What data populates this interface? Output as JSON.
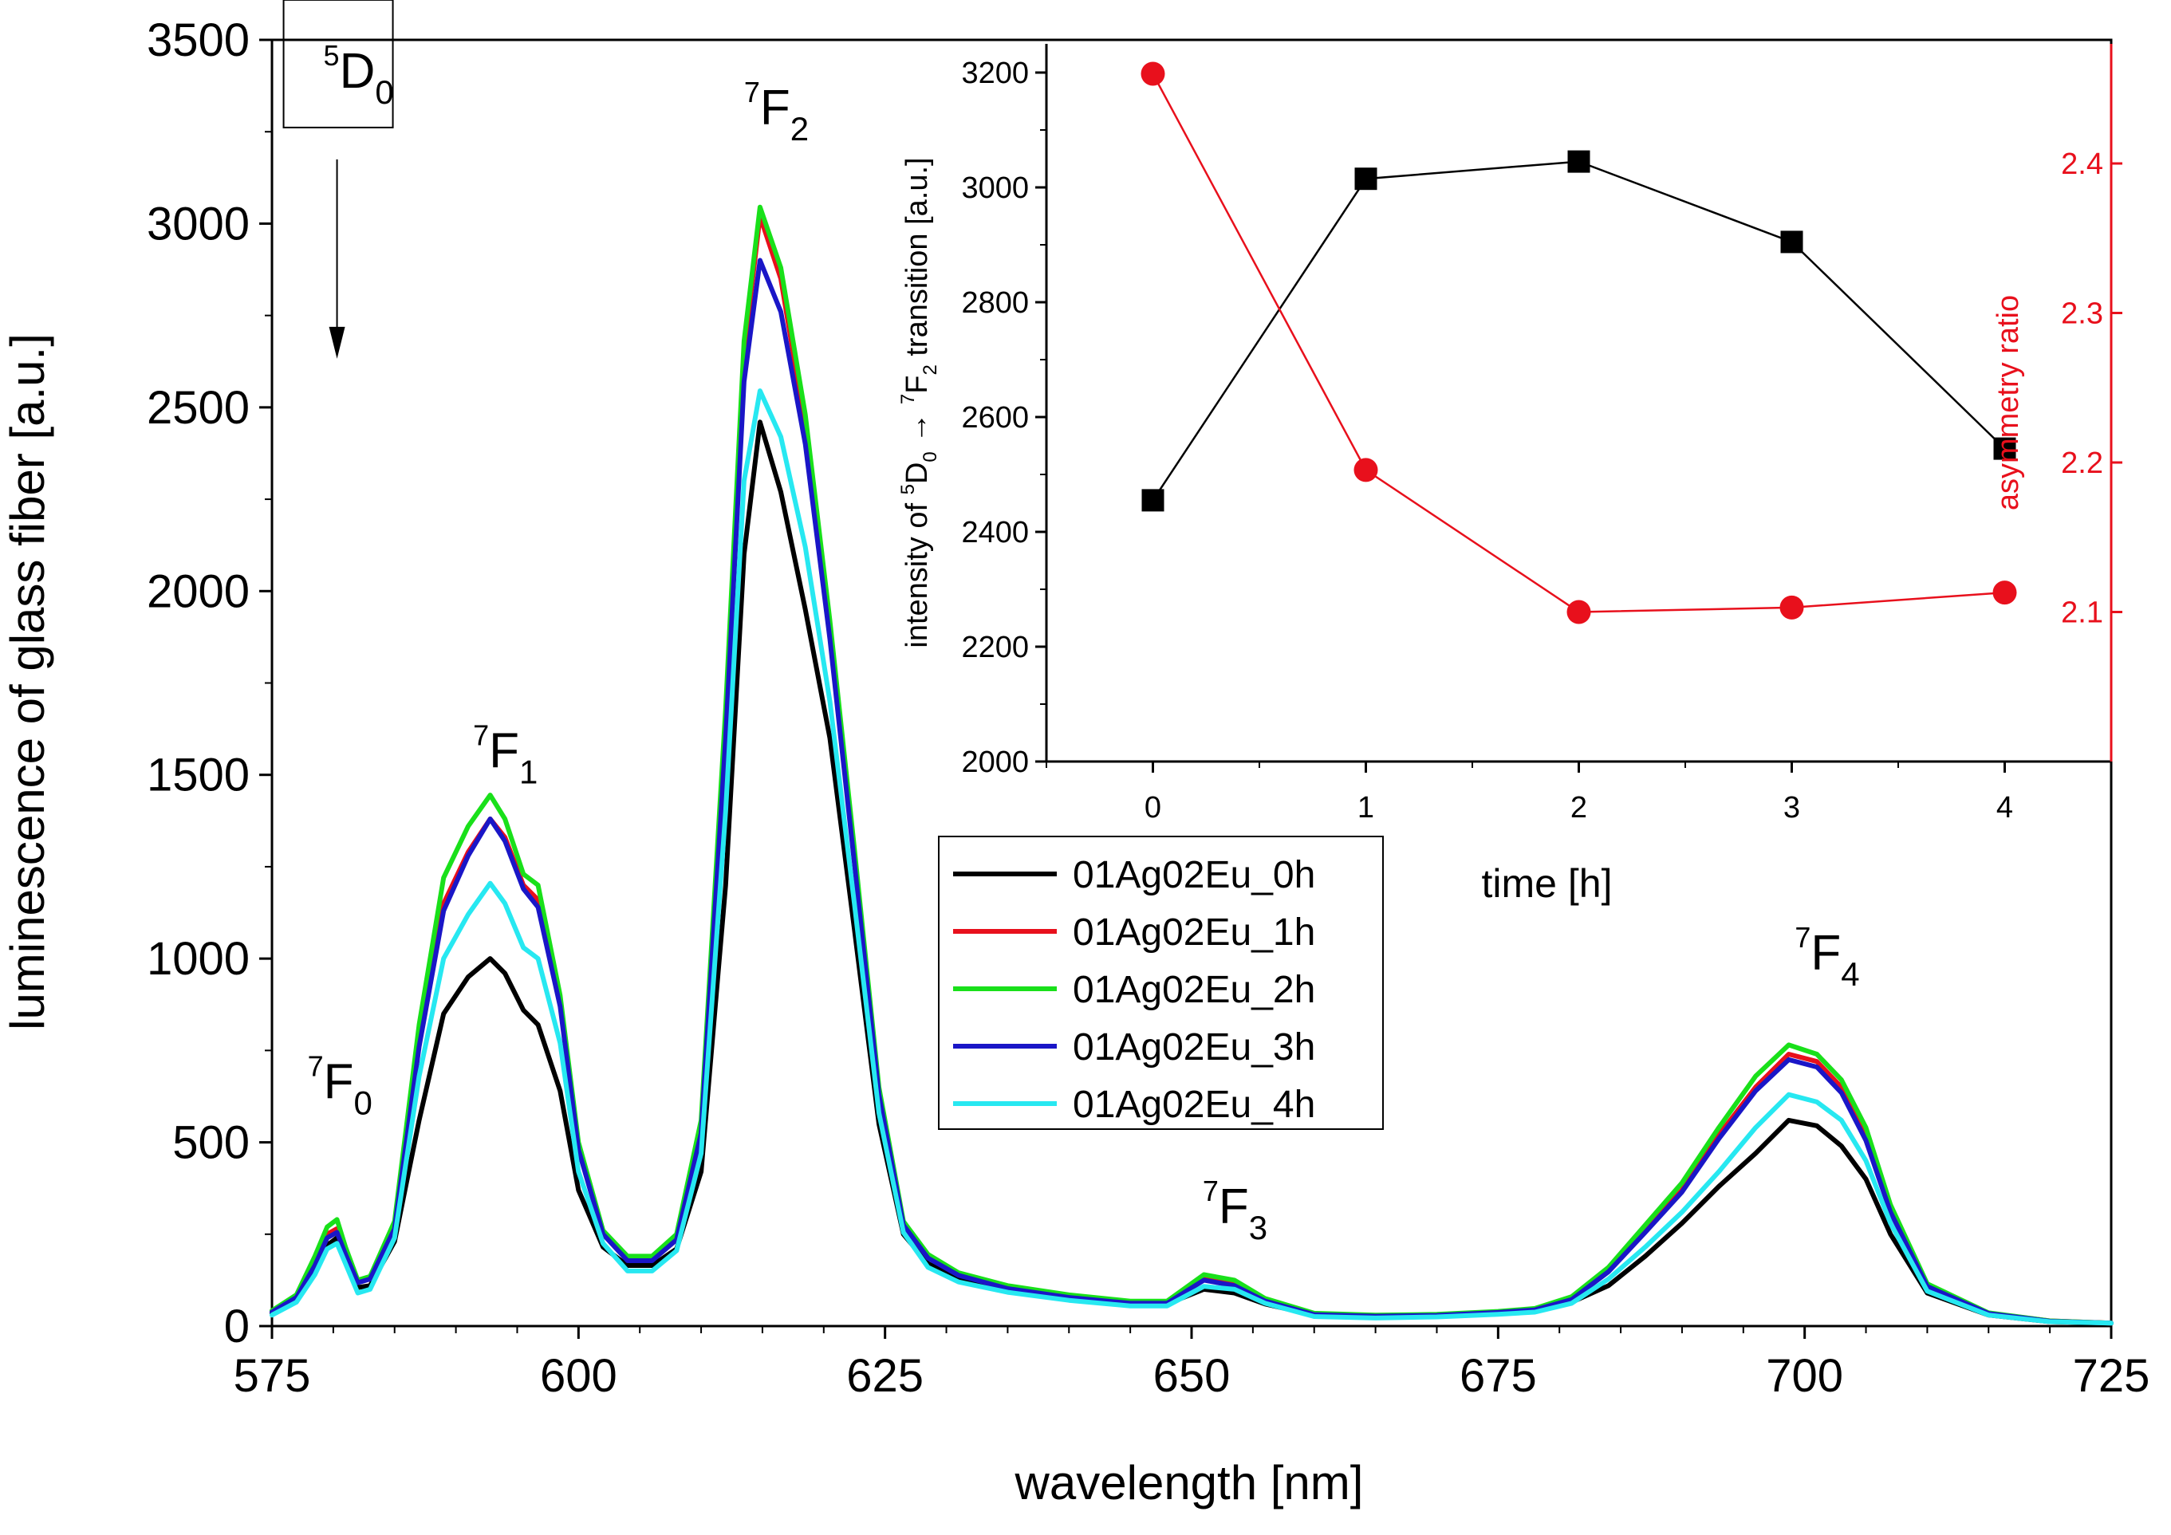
{
  "chart_data": [
    {
      "type": "line",
      "xlabel": "wavelength [nm]",
      "ylabel": "luminescence of glass fiber [a.u.]",
      "xlim": [
        575,
        725
      ],
      "ylim": [
        0,
        3500
      ],
      "xticks": [
        575,
        600,
        625,
        650,
        675,
        700,
        725
      ],
      "yticks": [
        0,
        500,
        1000,
        1500,
        2000,
        2500,
        3000,
        3500
      ],
      "xtick_labels": [
        "575",
        "600",
        "625",
        "650",
        "675",
        "700",
        "725"
      ],
      "ytick_labels": [
        "0",
        "500",
        "1000",
        "1500",
        "2000",
        "2500",
        "3000",
        "3500"
      ],
      "legend_position": "center",
      "x": [
        575,
        577,
        578.5,
        579.5,
        580.3,
        581,
        582,
        583,
        585,
        587,
        589,
        591,
        592.8,
        594,
        595.5,
        596.7,
        598.5,
        600,
        602,
        604,
        606,
        608,
        610,
        612,
        613.5,
        614.8,
        616.5,
        618.5,
        620.5,
        622.5,
        624.5,
        626.5,
        628.5,
        631,
        635,
        640,
        645,
        648,
        651,
        653.5,
        656,
        660,
        665,
        670,
        675,
        678,
        681,
        684,
        687,
        690,
        693,
        696,
        698.7,
        701,
        703,
        705,
        707,
        710,
        715,
        720,
        725
      ],
      "series": [
        {
          "name": "01Ag02Eu_0h",
          "color": "#000000",
          "values": [
            35,
            70,
            150,
            220,
            240,
            180,
            105,
            110,
            230,
            560,
            850,
            950,
            1000,
            960,
            860,
            820,
            640,
            370,
            215,
            165,
            165,
            210,
            420,
            1200,
            2100,
            2460,
            2270,
            1950,
            1600,
            1080,
            550,
            250,
            170,
            130,
            95,
            75,
            60,
            60,
            100,
            90,
            60,
            30,
            28,
            30,
            38,
            42,
            65,
            110,
            190,
            280,
            380,
            470,
            560,
            545,
            490,
            400,
            250,
            90,
            30,
            12,
            8
          ]
        },
        {
          "name": "01Ag02Eu_1h",
          "color": "#e8101c",
          "values": [
            40,
            80,
            175,
            250,
            265,
            200,
            120,
            130,
            270,
            780,
            1150,
            1290,
            1380,
            1330,
            1200,
            1160,
            880,
            490,
            255,
            180,
            180,
            240,
            540,
            1650,
            2650,
            3020,
            2850,
            2450,
            1900,
            1280,
            640,
            280,
            190,
            140,
            105,
            80,
            65,
            65,
            130,
            115,
            70,
            32,
            28,
            30,
            38,
            45,
            75,
            150,
            260,
            370,
            520,
            650,
            740,
            720,
            650,
            520,
            320,
            110,
            35,
            14,
            8
          ]
        },
        {
          "name": "01Ag02Eu_2h",
          "color": "#19e01a",
          "values": [
            42,
            85,
            190,
            270,
            290,
            215,
            125,
            135,
            285,
            820,
            1220,
            1360,
            1445,
            1380,
            1230,
            1200,
            900,
            500,
            260,
            190,
            190,
            250,
            560,
            1680,
            2680,
            3045,
            2880,
            2480,
            1920,
            1300,
            650,
            285,
            195,
            145,
            110,
            85,
            68,
            68,
            140,
            125,
            75,
            35,
            30,
            32,
            40,
            48,
            80,
            160,
            275,
            390,
            540,
            680,
            765,
            740,
            670,
            540,
            330,
            115,
            36,
            14,
            8
          ]
        },
        {
          "name": "01Ag02Eu_3h",
          "color": "#1a16c7",
          "values": [
            38,
            78,
            165,
            240,
            255,
            195,
            118,
            128,
            265,
            760,
            1130,
            1280,
            1380,
            1320,
            1190,
            1140,
            870,
            480,
            250,
            178,
            178,
            235,
            525,
            1600,
            2570,
            2900,
            2760,
            2400,
            1870,
            1260,
            630,
            275,
            185,
            138,
            102,
            78,
            62,
            62,
            125,
            110,
            68,
            31,
            27,
            29,
            37,
            44,
            72,
            148,
            255,
            365,
            510,
            640,
            725,
            705,
            635,
            505,
            310,
            108,
            34,
            13,
            8
          ]
        },
        {
          "name": "01Ag02Eu_4h",
          "color": "#27e8f1",
          "values": [
            30,
            65,
            140,
            210,
            225,
            170,
            90,
            100,
            240,
            680,
            1000,
            1120,
            1205,
            1150,
            1030,
            1000,
            770,
            420,
            225,
            150,
            150,
            205,
            470,
            1400,
            2300,
            2545,
            2420,
            2120,
            1700,
            1150,
            580,
            255,
            160,
            120,
            92,
            70,
            55,
            55,
            108,
            100,
            62,
            26,
            22,
            25,
            32,
            38,
            62,
            128,
            215,
            310,
            420,
            540,
            630,
            610,
            560,
            450,
            280,
            95,
            30,
            12,
            8
          ]
        }
      ],
      "annotations": [
        {
          "base": "D",
          "sup": "5",
          "sub": "0",
          "boxed": true,
          "arrow": "down",
          "x_data": 580.5,
          "y_data": 3370
        },
        {
          "base": "F",
          "sup": "7",
          "sub": "0",
          "x_data": 579.2,
          "y_data": 620
        },
        {
          "base": "F",
          "sup": "7",
          "sub": "1",
          "x_data": 592.7,
          "y_data": 1520
        },
        {
          "base": "F",
          "sup": "7",
          "sub": "2",
          "x_data": 614.8,
          "y_data": 3270
        },
        {
          "base": "F",
          "sup": "7",
          "sub": "3",
          "x_data": 652.2,
          "y_data": 280
        },
        {
          "base": "F",
          "sup": "7",
          "sub": "4",
          "x_data": 700.5,
          "y_data": 970
        }
      ]
    },
    {
      "type": "line",
      "inset": true,
      "xlabel": "time [h]",
      "ylabel_parts": [
        "intensity of ",
        "5",
        "D",
        "0",
        " → ",
        "7",
        "F",
        "2",
        " transition [a.u.]"
      ],
      "ylabel_right": "asymmetry ratio",
      "xlim": [
        -0.5,
        4.5
      ],
      "ylim": [
        2000,
        3250
      ],
      "ylim_right": [
        2.0,
        2.48
      ],
      "xticks": [
        0,
        1,
        2,
        3,
        4
      ],
      "yticks": [
        2000,
        2200,
        2400,
        2600,
        2800,
        3000,
        3200
      ],
      "yticks_right": [
        2.1,
        2.2,
        2.3,
        2.4
      ],
      "xtick_labels": [
        "0",
        "1",
        "2",
        "3",
        "4"
      ],
      "ytick_labels": [
        "2000",
        "2200",
        "2400",
        "2600",
        "2800",
        "3000",
        "3200"
      ],
      "ytick_labels_right": [
        "2.1",
        "2.2",
        "2.3",
        "2.4"
      ],
      "x": [
        0,
        1,
        2,
        3,
        4
      ],
      "series": [
        {
          "name": "intensity",
          "axis": "left",
          "marker": "square",
          "color": "#000000",
          "values": [
            2455,
            3015,
            3045,
            2905,
            2545
          ]
        },
        {
          "name": "asymmetry ratio",
          "axis": "right",
          "marker": "circle",
          "color": "#e8101c",
          "values": [
            2.46,
            2.195,
            2.1,
            2.103,
            2.113
          ]
        }
      ]
    }
  ]
}
